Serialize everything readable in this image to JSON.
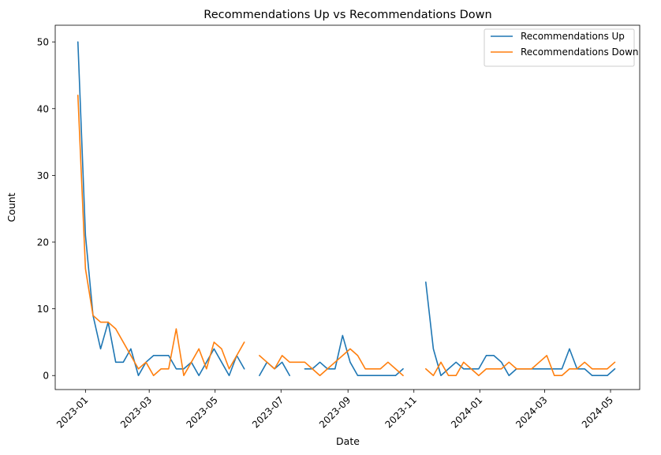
{
  "chart_data": {
    "type": "line",
    "title": "Recommendations Up vs Recommendations Down",
    "xlabel": "Date",
    "ylabel": "Count",
    "xlim": [
      "2022-12-04",
      "2024-05-28"
    ],
    "ylim": [
      -2.1,
      52.5
    ],
    "x_ticks": [
      "2023-01",
      "2023-03",
      "2023-05",
      "2023-07",
      "2023-09",
      "2023-11",
      "2024-01",
      "2024-03",
      "2024-05"
    ],
    "y_ticks": [
      0,
      10,
      20,
      30,
      40,
      50
    ],
    "grid": false,
    "legend_position": "top-right",
    "x": [
      "2022-12-25",
      "2023-01-01",
      "2023-01-08",
      "2023-01-15",
      "2023-01-22",
      "2023-01-29",
      "2023-02-05",
      "2023-02-12",
      "2023-02-19",
      "2023-02-26",
      "2023-03-05",
      "2023-03-12",
      "2023-03-19",
      "2023-03-26",
      "2023-04-02",
      "2023-04-09",
      "2023-04-16",
      "2023-04-23",
      "2023-04-30",
      "2023-05-07",
      "2023-05-14",
      "2023-05-21",
      "2023-05-28",
      "2023-06-04",
      "2023-06-11",
      "2023-06-18",
      "2023-06-25",
      "2023-07-02",
      "2023-07-09",
      "2023-07-16",
      "2023-07-23",
      "2023-07-30",
      "2023-08-06",
      "2023-08-13",
      "2023-08-20",
      "2023-08-27",
      "2023-09-03",
      "2023-09-10",
      "2023-09-17",
      "2023-09-24",
      "2023-10-01",
      "2023-10-08",
      "2023-10-15",
      "2023-10-22",
      "2023-10-29",
      "2023-11-05",
      "2023-11-12",
      "2023-11-19",
      "2023-11-26",
      "2023-12-03",
      "2023-12-10",
      "2023-12-17",
      "2023-12-24",
      "2023-12-31",
      "2024-01-07",
      "2024-01-14",
      "2024-01-21",
      "2024-01-28",
      "2024-02-04",
      "2024-02-11",
      "2024-02-18",
      "2024-02-25",
      "2024-03-03",
      "2024-03-10",
      "2024-03-17",
      "2024-03-24",
      "2024-03-31",
      "2024-04-07",
      "2024-04-14",
      "2024-04-21",
      "2024-04-28",
      "2024-05-05"
    ],
    "series": [
      {
        "name": "Recommendations Up",
        "color": "#1f77b4",
        "values": [
          50,
          21,
          9,
          4,
          8,
          2,
          2,
          4,
          0,
          2,
          3,
          3,
          3,
          1,
          1,
          2,
          0,
          2,
          4,
          2,
          0,
          3,
          1,
          null,
          0,
          2,
          1,
          2,
          0,
          null,
          1,
          1,
          2,
          1,
          1,
          6,
          2,
          0,
          0,
          0,
          0,
          0,
          0,
          1,
          null,
          null,
          14,
          4,
          0,
          1,
          2,
          1,
          1,
          1,
          3,
          3,
          2,
          0,
          1,
          1,
          1,
          1,
          1,
          1,
          1,
          4,
          1,
          1,
          0,
          0,
          0,
          1
        ]
      },
      {
        "name": "Recommendations Down",
        "color": "#ff7f0e",
        "values": [
          42,
          16,
          9,
          8,
          8,
          7,
          5,
          3,
          1,
          2,
          0,
          1,
          1,
          7,
          0,
          2,
          4,
          1,
          5,
          4,
          1,
          3,
          5,
          null,
          3,
          2,
          1,
          3,
          2,
          2,
          2,
          1,
          0,
          1,
          2,
          3,
          4,
          3,
          1,
          1,
          1,
          2,
          1,
          0,
          null,
          null,
          1,
          0,
          2,
          0,
          0,
          2,
          1,
          0,
          1,
          1,
          1,
          2,
          1,
          1,
          1,
          2,
          3,
          0,
          0,
          1,
          1,
          2,
          1,
          1,
          1,
          2
        ]
      }
    ]
  }
}
